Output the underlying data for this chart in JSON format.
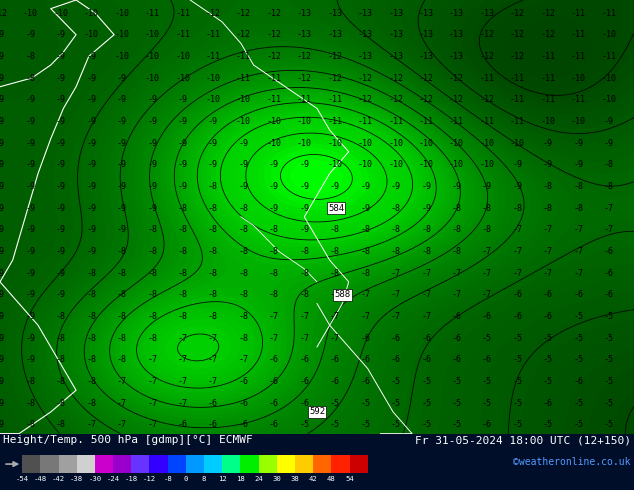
{
  "title_left": "Height/Temp. 500 hPa [gdmp][°C] ECMWF",
  "title_right": "Fr 31-05-2024 18:00 UTC (12+150)",
  "credit": "©weatheronline.co.uk",
  "colorbar_tick_labels": [
    "-54",
    "-48",
    "-42",
    "-38",
    "-30",
    "-24",
    "-18",
    "-12",
    "-8",
    "0",
    "8",
    "12",
    "18",
    "24",
    "30",
    "38",
    "42",
    "48",
    "54"
  ],
  "colorbar_colors": [
    "#505050",
    "#787878",
    "#a0a0a0",
    "#d0d0d0",
    "#cc00cc",
    "#9900cc",
    "#6633ff",
    "#3300ff",
    "#0044ff",
    "#0099ff",
    "#00ccff",
    "#00ff88",
    "#00ee00",
    "#99ff00",
    "#ffff00",
    "#ffcc00",
    "#ff6600",
    "#ff2200",
    "#cc0000"
  ],
  "map_bg_bright": "#00dd00",
  "map_bg_dark": "#007700",
  "shading_levels": [
    0.0,
    0.3,
    0.6,
    1.0
  ],
  "contour_color_geop": "#000000",
  "contour_color_coast": "#ffffff",
  "label_box_color": "#ffffff",
  "label_text_color": "#000000",
  "number_color": "#000000",
  "number_fontsize": 6.0,
  "bottom_bg": "#000e2a",
  "credit_color": "#5599ff",
  "title_color": "#ffffff",
  "date_color": "#ffffff"
}
